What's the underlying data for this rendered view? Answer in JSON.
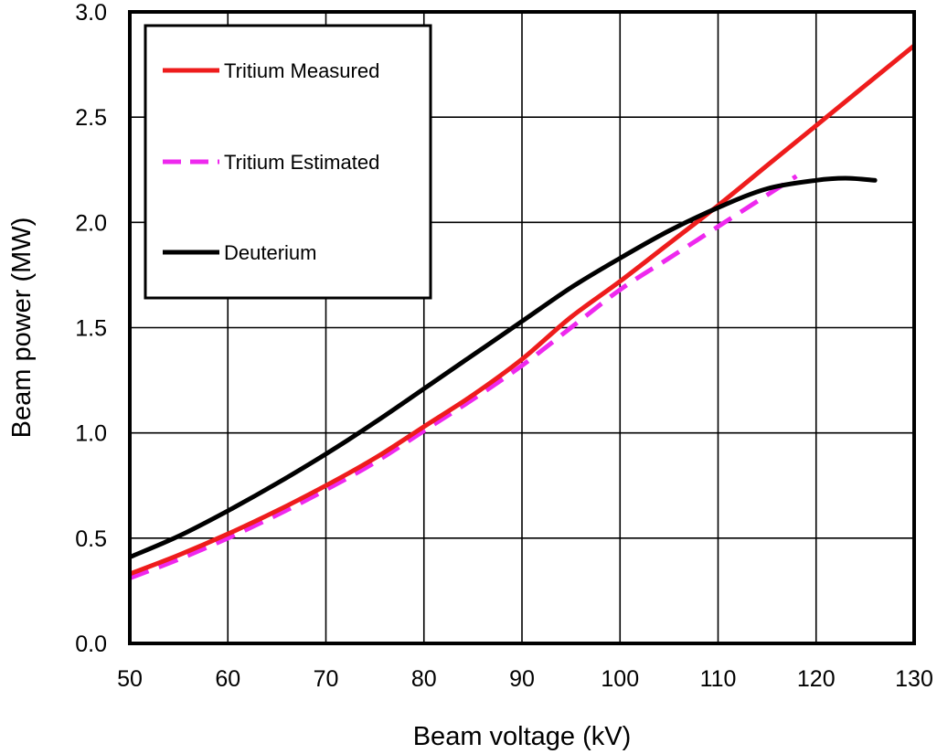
{
  "chart_data": {
    "type": "line",
    "title": "",
    "xlabel": "Beam voltage (kV)",
    "ylabel": "Beam power (MW)",
    "xlim": [
      50,
      130
    ],
    "ylim": [
      0.0,
      3.0
    ],
    "x_ticks": [
      50,
      60,
      70,
      80,
      90,
      100,
      110,
      120,
      130
    ],
    "x_tick_labels": [
      "50",
      "60",
      "70",
      "80",
      "90",
      "100",
      "110",
      "120",
      "130"
    ],
    "y_ticks": [
      0.0,
      0.5,
      1.0,
      1.5,
      2.0,
      2.5,
      3.0
    ],
    "y_tick_labels": [
      "0.0",
      "0.5",
      "1.0",
      "1.5",
      "2.0",
      "2.5",
      "3.0"
    ],
    "grid": true,
    "legend_position": "top-left",
    "series": [
      {
        "name": "Tritium Measured",
        "color": "#ee1c1c",
        "dash": "solid",
        "points": [
          [
            50,
            0.33
          ],
          [
            55,
            0.42
          ],
          [
            60,
            0.52
          ],
          [
            65,
            0.63
          ],
          [
            70,
            0.75
          ],
          [
            75,
            0.88
          ],
          [
            80,
            1.03
          ],
          [
            85,
            1.18
          ],
          [
            90,
            1.35
          ],
          [
            95,
            1.55
          ],
          [
            100,
            1.72
          ],
          [
            105,
            1.9
          ],
          [
            110,
            2.08
          ],
          [
            115,
            2.27
          ],
          [
            120,
            2.46
          ],
          [
            125,
            2.65
          ],
          [
            130,
            2.84
          ]
        ]
      },
      {
        "name": "Tritium Estimated",
        "color": "#ee28ee",
        "dash": "dashed",
        "points": [
          [
            50,
            0.31
          ],
          [
            55,
            0.4
          ],
          [
            60,
            0.5
          ],
          [
            65,
            0.61
          ],
          [
            70,
            0.73
          ],
          [
            75,
            0.86
          ],
          [
            80,
            1.01
          ],
          [
            85,
            1.16
          ],
          [
            90,
            1.32
          ],
          [
            95,
            1.5
          ],
          [
            100,
            1.68
          ],
          [
            105,
            1.83
          ],
          [
            110,
            1.98
          ],
          [
            115,
            2.13
          ],
          [
            118,
            2.22
          ]
        ]
      },
      {
        "name": "Deuterium",
        "color": "#000000",
        "dash": "solid",
        "points": [
          [
            50,
            0.41
          ],
          [
            55,
            0.51
          ],
          [
            60,
            0.63
          ],
          [
            65,
            0.76
          ],
          [
            70,
            0.9
          ],
          [
            75,
            1.05
          ],
          [
            80,
            1.21
          ],
          [
            85,
            1.37
          ],
          [
            90,
            1.53
          ],
          [
            95,
            1.69
          ],
          [
            100,
            1.83
          ],
          [
            105,
            1.96
          ],
          [
            110,
            2.07
          ],
          [
            115,
            2.16
          ],
          [
            120,
            2.2
          ],
          [
            123,
            2.21
          ],
          [
            126,
            2.2
          ]
        ]
      }
    ]
  }
}
